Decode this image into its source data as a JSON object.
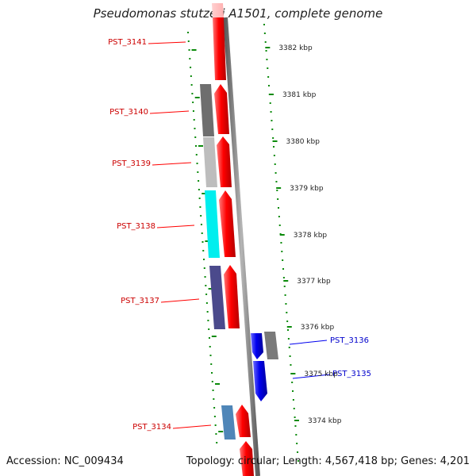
{
  "title": "Pseudomonas stutzeri A1501, complete genome",
  "footer": {
    "accession": "Accession: NC_009434",
    "summary": "Topology: circular; Length: 4,567,418 bp; Genes: 4,201"
  },
  "colors": {
    "forward_gene": "#ff0000",
    "reverse_gene": "#0000ee",
    "left_label": "#cc0000",
    "right_label": "#0000cc",
    "backbone": "#808080",
    "dots": "#0a8a0a"
  },
  "scale_ticks": [
    "3382 kbp",
    "3381 kbp",
    "3380 kbp",
    "3379 kbp",
    "3378 kbp",
    "3377 kbp",
    "3376 kbp",
    "3375 kbp",
    "3374 kbp"
  ],
  "left_genes": [
    {
      "name": "PST_3141",
      "color": "#ff0000"
    },
    {
      "name": "PST_3140",
      "color": "#ff0000"
    },
    {
      "name": "PST_3139",
      "color": "#ff0000"
    },
    {
      "name": "PST_3138",
      "color": "#ff0000"
    },
    {
      "name": "PST_3137",
      "color": "#ff0000"
    },
    {
      "name": "PST_3134",
      "color": "#ff0000"
    }
  ],
  "right_genes": [
    {
      "name": "PST_3136",
      "color": "#0000ee"
    },
    {
      "name": "PST_3135",
      "color": "#0000ee"
    }
  ],
  "cog_blocks": [
    {
      "name": "cog-block-3140",
      "color": "#6e6e6e"
    },
    {
      "name": "cog-block-3139",
      "color": "#bdbdbd"
    },
    {
      "name": "cog-block-3138",
      "color": "#00eeee"
    },
    {
      "name": "cog-block-3137",
      "color": "#4b4a8c"
    },
    {
      "name": "cog-block-3134",
      "color": "#4f86b8"
    },
    {
      "name": "cog-block-3136",
      "color": "#7a7a7a"
    }
  ]
}
